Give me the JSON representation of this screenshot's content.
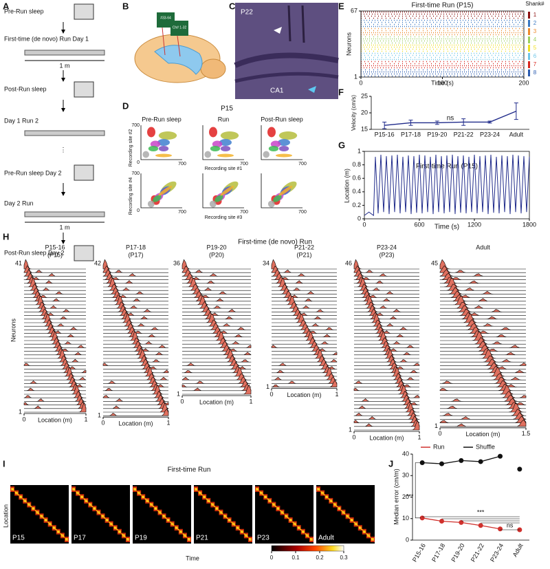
{
  "panel_letters": [
    "A",
    "B",
    "C",
    "D",
    "E",
    "F",
    "G",
    "H",
    "I",
    "J"
  ],
  "panel_a": {
    "steps": [
      "Pre-Run sleep",
      "First-time (de novo) Run Day 1",
      "Post-Run sleep",
      "Day 1 Run 2",
      "Pre-Run sleep Day 2",
      "Day 2 Run",
      "Post-Run sleep Day 2"
    ],
    "track_length": "1 m",
    "ellipsis": "⋮"
  },
  "panel_b": {
    "labels": [
      "#33-64",
      "Ch# 1-32"
    ]
  },
  "panel_c": {
    "labels": [
      "P22",
      "CA1"
    ]
  },
  "panel_d": {
    "title": "P15",
    "columns": [
      "Pre-Run sleep",
      "Run",
      "Post-Run sleep"
    ],
    "axis_labels": [
      "Recording site #2",
      "Recording site #1",
      "Recording site #4",
      "Recording site #3"
    ],
    "ticks": [
      0,
      700
    ]
  },
  "panel_h": {
    "title": "First-time (de novo) Run",
    "ylabel": "Neurons",
    "xlabel": "Location (m)",
    "first_neuron": 1,
    "groups": [
      {
        "label": "P15-16",
        "session": "(P15)",
        "n": 41,
        "xticks": [
          0,
          1
        ]
      },
      {
        "label": "P17-18",
        "session": "(P17)",
        "n": 42,
        "xticks": [
          0,
          1
        ]
      },
      {
        "label": "P19-20",
        "session": "(P20)",
        "n": 36,
        "xticks": [
          0,
          1
        ]
      },
      {
        "label": "P21-22",
        "session": "(P21)",
        "n": 34,
        "xticks": [
          0,
          1
        ]
      },
      {
        "label": "P23-24",
        "session": "(P23)",
        "n": 46,
        "xticks": [
          0,
          1
        ]
      },
      {
        "label": "Adult",
        "n": 45,
        "xticks": [
          0,
          1.5
        ]
      }
    ]
  },
  "panel_i": {
    "title": "First-time Run",
    "labels": [
      "P15",
      "P17",
      "P19",
      "P21",
      "P23",
      "Adult"
    ],
    "ylabel": "Location",
    "xlabel": "Time",
    "colorbar_ticks": [
      0,
      0.1,
      0.2,
      0.3
    ]
  },
  "chart_data": [
    {
      "type": "raster",
      "title": "First-time Run (P15)",
      "ylabel": "Neurons",
      "xlabel": "Time (s)",
      "xlim": [
        0,
        200
      ],
      "xticks": [
        0,
        100,
        200
      ],
      "ylim": [
        1,
        67
      ],
      "yticks": [
        1,
        67
      ],
      "legend_title": "Shank#",
      "series": [
        {
          "name": "1",
          "color": "#8b1010"
        },
        {
          "name": "2",
          "color": "#3a78c2"
        },
        {
          "name": "3",
          "color": "#ee8a2c"
        },
        {
          "name": "4",
          "color": "#9ccf5e"
        },
        {
          "name": "5",
          "color": "#f0e020"
        },
        {
          "name": "6",
          "color": "#6ec6e8"
        },
        {
          "name": "7",
          "color": "#d8261e"
        },
        {
          "name": "8",
          "color": "#2a5bb0"
        }
      ]
    },
    {
      "type": "errorline",
      "ylabel": "Velocity (cm/s)",
      "categories": [
        "P15-16",
        "P17-18",
        "P19-20",
        "P21-22",
        "P23-24",
        "Adult"
      ],
      "values": [
        16.2,
        17,
        17,
        17.2,
        17.2,
        20.5
      ],
      "errors": [
        1,
        0.8,
        0.5,
        1,
        0.3,
        2.5
      ],
      "color": "#1f2a8a",
      "ylim": [
        15,
        25
      ],
      "yticks": [
        15,
        20,
        25
      ],
      "annotations": [
        "ns"
      ]
    },
    {
      "type": "line",
      "title": "First-time Run (P15)",
      "ylabel": "Location (m)",
      "xlabel": "Time (s)",
      "color": "#1f2a8a",
      "xlim": [
        0,
        1800
      ],
      "xticks": [
        0,
        600,
        1200,
        1800
      ],
      "ylim": [
        0,
        1
      ],
      "yticks": [
        0,
        0.2,
        0.4,
        0.6,
        0.8,
        1
      ],
      "x": [
        0,
        50,
        100,
        120,
        150,
        180,
        210,
        240,
        270,
        300,
        330,
        360,
        390,
        420,
        450,
        480,
        510,
        540,
        570,
        600,
        630,
        660,
        690,
        720,
        750,
        780,
        810,
        840,
        870,
        900,
        930,
        960,
        990,
        1020,
        1050,
        1080,
        1110,
        1140,
        1170,
        1200,
        1230,
        1260,
        1290,
        1320,
        1350,
        1380,
        1410,
        1440,
        1470,
        1500,
        1530,
        1560,
        1590,
        1620,
        1650,
        1680,
        1710,
        1740,
        1770,
        1800
      ],
      "values": [
        0.05,
        0.1,
        0.05,
        0.92,
        0.08,
        0.95,
        0.1,
        0.93,
        0.07,
        0.94,
        0.1,
        0.95,
        0.08,
        0.92,
        0.1,
        0.94,
        0.07,
        0.93,
        0.09,
        0.95,
        0.08,
        0.94,
        0.1,
        0.92,
        0.07,
        0.95,
        0.1,
        0.93,
        0.08,
        0.94,
        0.1,
        0.95,
        0.07,
        0.93,
        0.09,
        0.94,
        0.08,
        0.92,
        0.1,
        0.95,
        0.08,
        0.93,
        0.1,
        0.94,
        0.07,
        0.95,
        0.09,
        0.92,
        0.08,
        0.94,
        0.1,
        0.93,
        0.07,
        0.95,
        0.1,
        0.94,
        0.08,
        0.93,
        0.1,
        0.92
      ]
    },
    {
      "type": "dotline",
      "ylabel": "Median error (cm/m)",
      "categories": [
        "P15-16",
        "P17-18",
        "P19-20",
        "P21-22",
        "P23-24",
        "Adult"
      ],
      "series": [
        {
          "name": "Run",
          "color": "#d0312d",
          "values": [
            10.3,
            8.8,
            8.2,
            6.8,
            5.2,
            4.8
          ]
        },
        {
          "name": "Shuffle",
          "color": "#111111",
          "values": [
            36,
            35.5,
            37,
            36.5,
            39,
            33
          ]
        }
      ],
      "connected_points": 5,
      "ylim": [
        0,
        40
      ],
      "yticks": [
        0,
        10,
        20,
        30,
        40
      ],
      "annotations": [
        "***",
        "***",
        "ns"
      ]
    }
  ]
}
